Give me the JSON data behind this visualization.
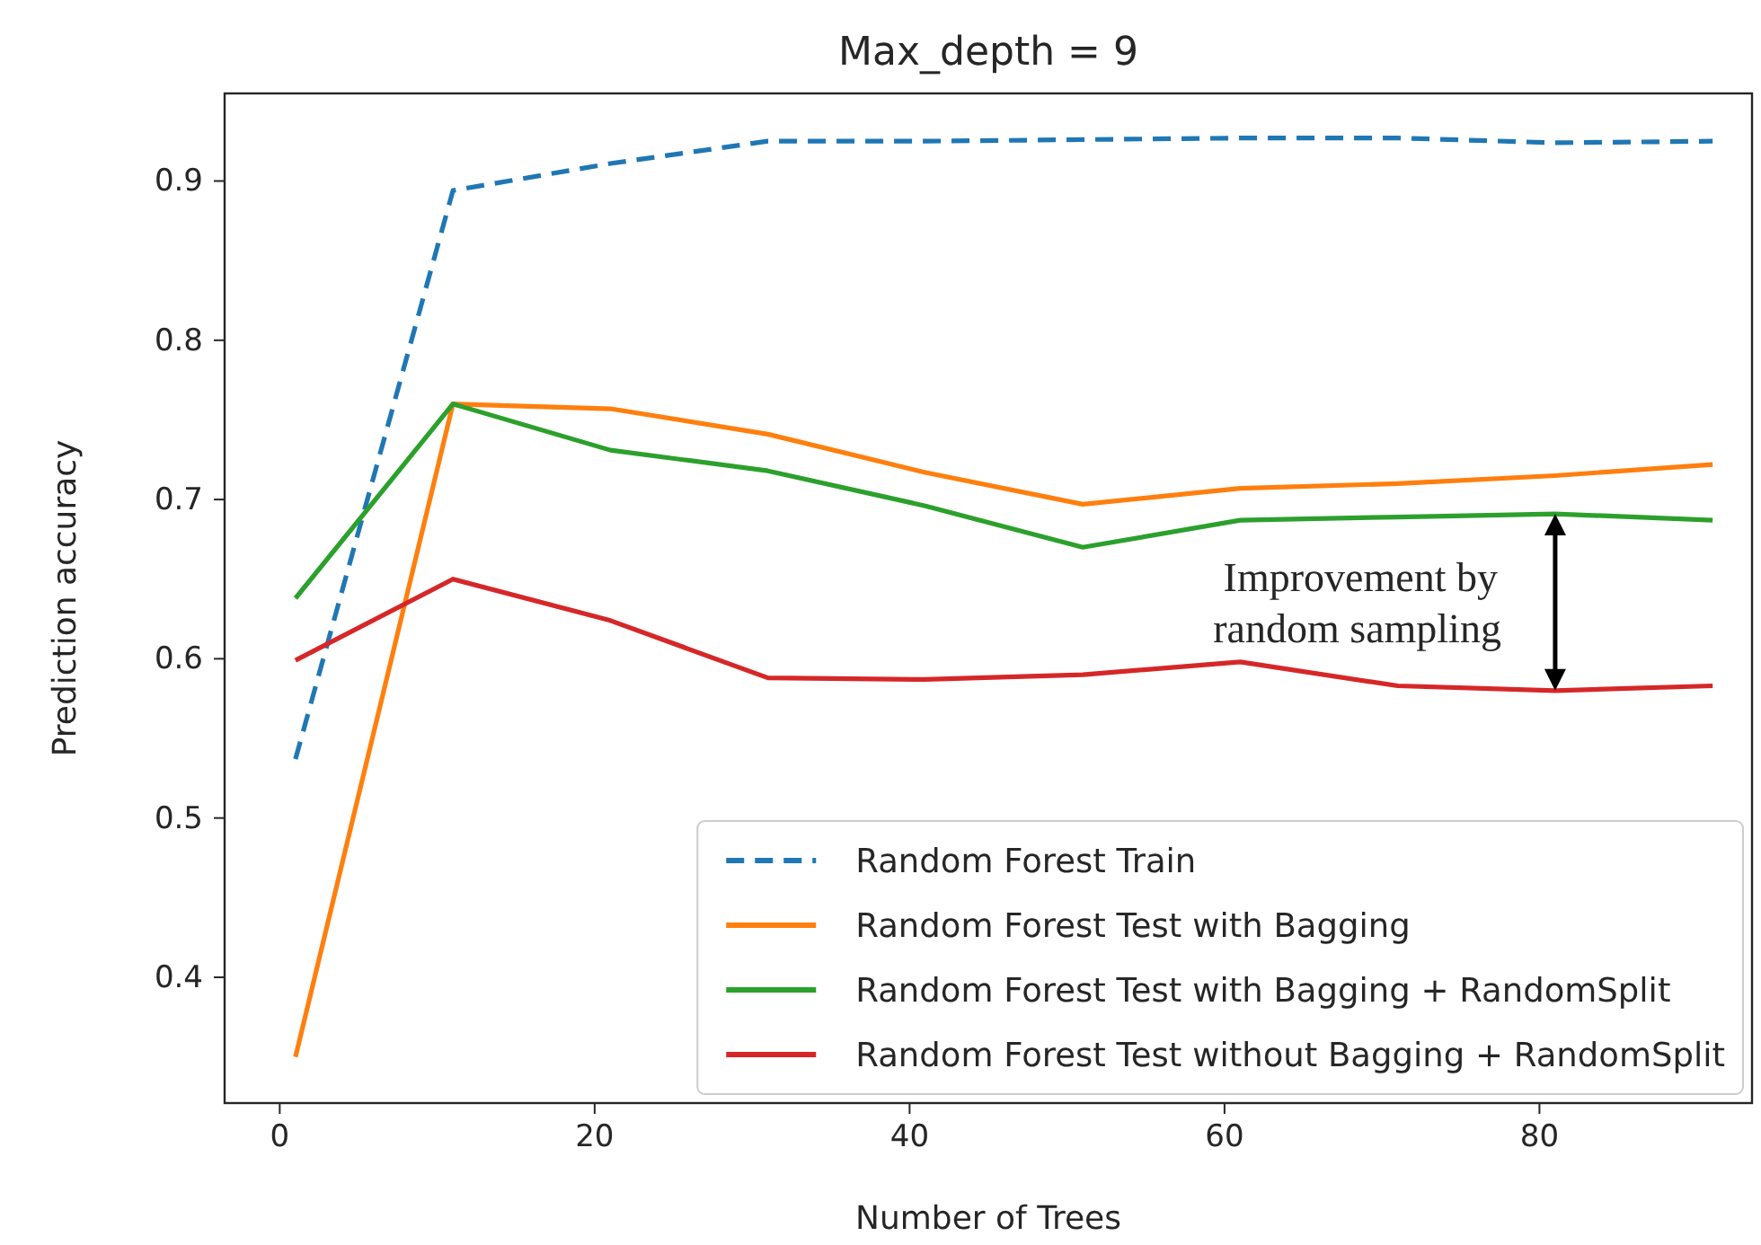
{
  "chart_data": {
    "type": "line",
    "title": "Max_depth = 9",
    "xlabel": "Number of Trees",
    "ylabel": "Prediction accuracy",
    "x": [
      1,
      11,
      21,
      31,
      41,
      51,
      61,
      71,
      81,
      91
    ],
    "series": [
      {
        "name": "Random Forest Train",
        "color": "#1f77b4",
        "line_style": "dashed",
        "values": [
          0.537,
          0.894,
          0.911,
          0.925,
          0.925,
          0.926,
          0.927,
          0.927,
          0.924,
          0.925
        ]
      },
      {
        "name": "Random Forest Test with Bagging",
        "color": "#ff7f0e",
        "values": [
          0.35,
          0.76,
          0.757,
          0.741,
          0.717,
          0.697,
          0.707,
          0.71,
          0.715,
          0.722
        ]
      },
      {
        "name": "Random Forest Test with Bagging + RandomSplit",
        "color": "#2ca02c",
        "values": [
          0.638,
          0.76,
          0.731,
          0.718,
          0.696,
          0.67,
          0.687,
          0.689,
          0.691,
          0.687
        ]
      },
      {
        "name": "Random Forest Test without Bagging + RandomSplit",
        "color": "#d62728",
        "values": [
          0.599,
          0.65,
          0.624,
          0.588,
          0.587,
          0.59,
          0.598,
          0.583,
          0.58,
          0.583
        ]
      }
    ],
    "xlim": [
      -3.5,
      93.5
    ],
    "ylim": [
      0.321,
      0.955
    ],
    "xticks": [
      0,
      20,
      40,
      60,
      80
    ],
    "yticks": [
      0.4,
      0.5,
      0.6,
      0.7,
      0.8,
      0.9
    ],
    "annotations": [
      "Improvement by random sampling"
    ],
    "legend": "bottom right",
    "grid": false
  }
}
